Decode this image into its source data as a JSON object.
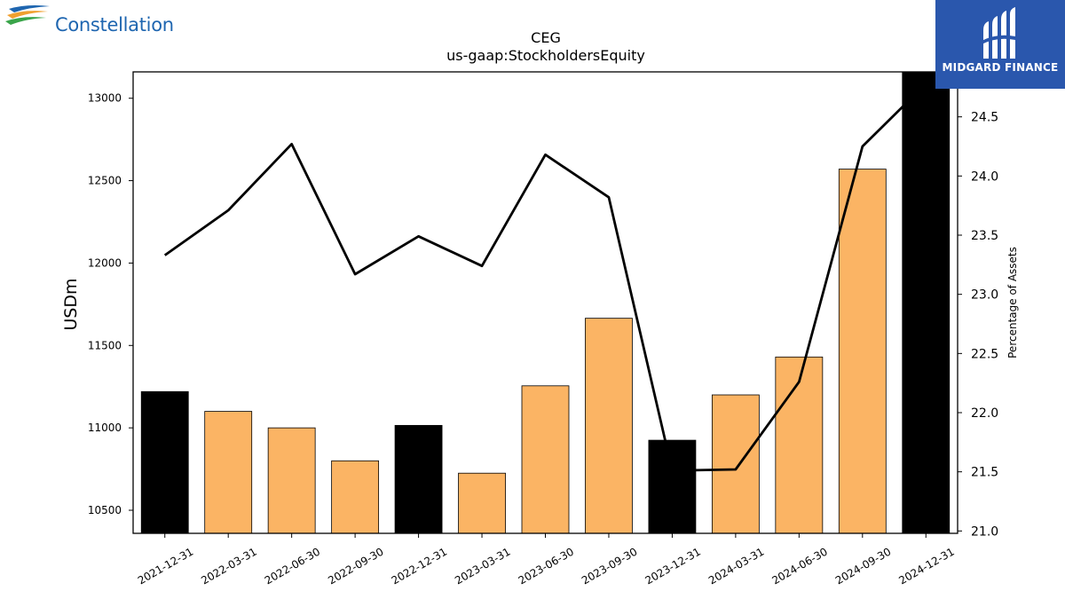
{
  "logos": {
    "left_brand": "Constellation",
    "right_brand": "MIDGARD FINANCE"
  },
  "colors": {
    "primary_bar": "#000000",
    "secondary_bar": "#fbb464",
    "line": "#000000",
    "logo_left_text": "#1f66b0",
    "logo_right_bg": "#2a57ad"
  },
  "chart_data": {
    "type": "bar",
    "title": "CEG",
    "subtitle": "us-gaap:StockholdersEquity",
    "ylabel": "USDm",
    "y2label": "Percentage of Assets",
    "ylim": [
      10360,
      13160
    ],
    "y2lim": [
      20.98,
      24.88
    ],
    "yticks": [
      10500,
      11000,
      11500,
      12000,
      12500,
      13000
    ],
    "y2ticks": [
      21.0,
      21.5,
      22.0,
      22.5,
      23.0,
      23.5,
      24.0,
      24.5
    ],
    "y2tick_labels": [
      "21.0",
      "21.5",
      "22.0",
      "22.5",
      "23.0",
      "23.5",
      "24.0",
      "24.5"
    ],
    "categories": [
      "2021-12-31",
      "2022-03-31",
      "2022-06-30",
      "2022-09-30",
      "2022-12-31",
      "2023-03-31",
      "2023-06-30",
      "2023-09-30",
      "2023-12-31",
      "2024-03-31",
      "2024-06-30",
      "2024-09-30",
      "2024-12-31"
    ],
    "annual": [
      true,
      false,
      false,
      false,
      true,
      false,
      false,
      false,
      true,
      false,
      false,
      false,
      true
    ],
    "series": [
      {
        "values": [
          11220,
          11100,
          11000,
          10800,
          11015,
          10725,
          11255,
          11665,
          10925,
          11200,
          11430,
          12570,
          13200
        ]
      },
      {
        "axis": "right",
        "values": [
          23.33,
          23.71,
          24.27,
          23.17,
          23.49,
          23.24,
          24.18,
          23.82,
          21.51,
          21.52,
          22.26,
          24.25,
          24.78
        ]
      }
    ],
    "grid": false,
    "legend": "none"
  }
}
